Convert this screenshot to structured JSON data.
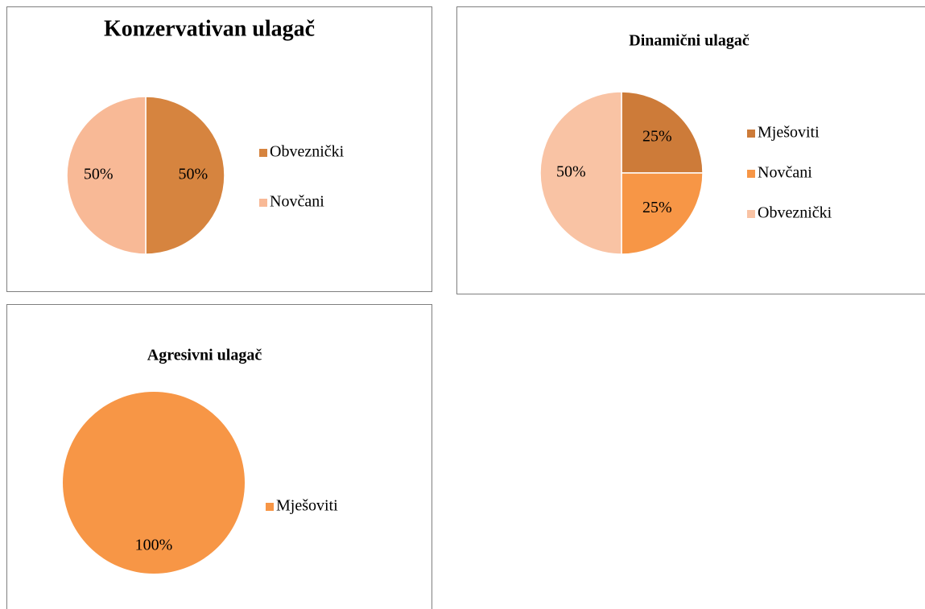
{
  "chart_data": [
    {
      "type": "pie",
      "title": "Konzervativan ulagač",
      "categories": [
        "Obveznički",
        "Novčani"
      ],
      "values": [
        50,
        50
      ],
      "value_labels": [
        "50%",
        "50%"
      ],
      "colors": [
        "#d6843f",
        "#f8b996"
      ],
      "legend": "right"
    },
    {
      "type": "pie",
      "title": "Dinamični ulagač",
      "categories": [
        "Mješoviti",
        "Novčani",
        "Obveznički"
      ],
      "values": [
        25,
        25,
        50
      ],
      "value_labels": [
        "25%",
        "25%",
        "50%"
      ],
      "colors": [
        "#cd7b39",
        "#f79646",
        "#f9c3a4"
      ],
      "legend": "right"
    },
    {
      "type": "pie",
      "title": "Agresivni ulagač",
      "categories": [
        "Mješoviti"
      ],
      "values": [
        100
      ],
      "value_labels": [
        "100%"
      ],
      "colors": [
        "#f79646"
      ],
      "legend": "right"
    }
  ]
}
